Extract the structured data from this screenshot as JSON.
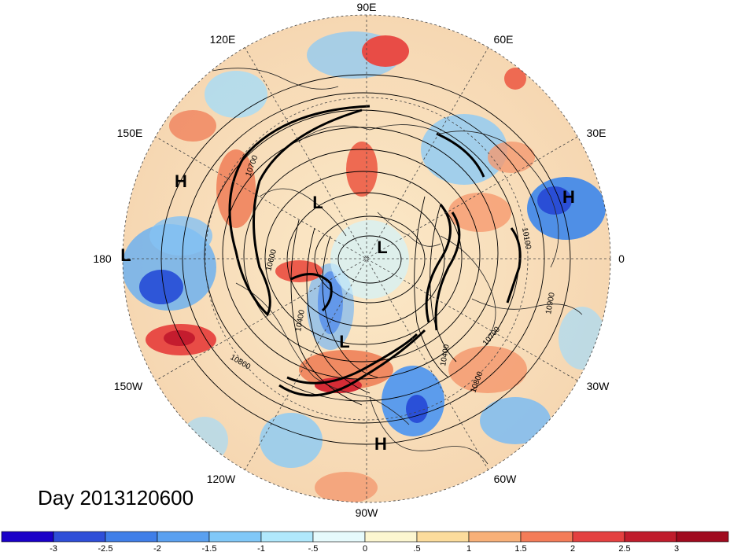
{
  "title": "Day 2013120600",
  "longitude_labels": [
    {
      "id": "lon-90e",
      "text": "90E"
    },
    {
      "id": "lon-60e",
      "text": "60E"
    },
    {
      "id": "lon-30e",
      "text": "30E"
    },
    {
      "id": "lon-0",
      "text": "0"
    },
    {
      "id": "lon-30w",
      "text": "30W"
    },
    {
      "id": "lon-60w",
      "text": "60W"
    },
    {
      "id": "lon-90w",
      "text": "90W"
    },
    {
      "id": "lon-120w",
      "text": "120W"
    },
    {
      "id": "lon-150w",
      "text": "150W"
    },
    {
      "id": "lon-180",
      "text": "180"
    },
    {
      "id": "lon-150e",
      "text": "150E"
    },
    {
      "id": "lon-120e",
      "text": "120E"
    }
  ],
  "pressure_centers": [
    {
      "id": "high-siberia",
      "text": "H"
    },
    {
      "id": "low-dateline",
      "text": "L"
    },
    {
      "id": "low-alaska",
      "text": "L"
    },
    {
      "id": "low-pole",
      "text": "L"
    },
    {
      "id": "low-canada",
      "text": "L"
    },
    {
      "id": "high-europe",
      "text": "H"
    },
    {
      "id": "high-caribbean",
      "text": "H"
    }
  ],
  "contour_labels": [
    "10700",
    "10600",
    "10400",
    "10800",
    "10400",
    "10700",
    "10800",
    "10900",
    "10100"
  ],
  "colorbar": {
    "ticks": [
      "-3",
      "-2.5",
      "-2",
      "-1.5",
      "-1",
      "-.5",
      "0",
      ".5",
      "1",
      "1.5",
      "2",
      "2.5",
      "3"
    ],
    "colors": [
      "#1a00c8",
      "#2e4ed8",
      "#3f7ee8",
      "#5aa0f0",
      "#80c8f8",
      "#b0e8fc",
      "#e6fafc",
      "#fcf6d0",
      "#fcdc9c",
      "#f8b078",
      "#f47c58",
      "#e44040",
      "#c01c2c",
      "#a00a1e"
    ]
  }
}
